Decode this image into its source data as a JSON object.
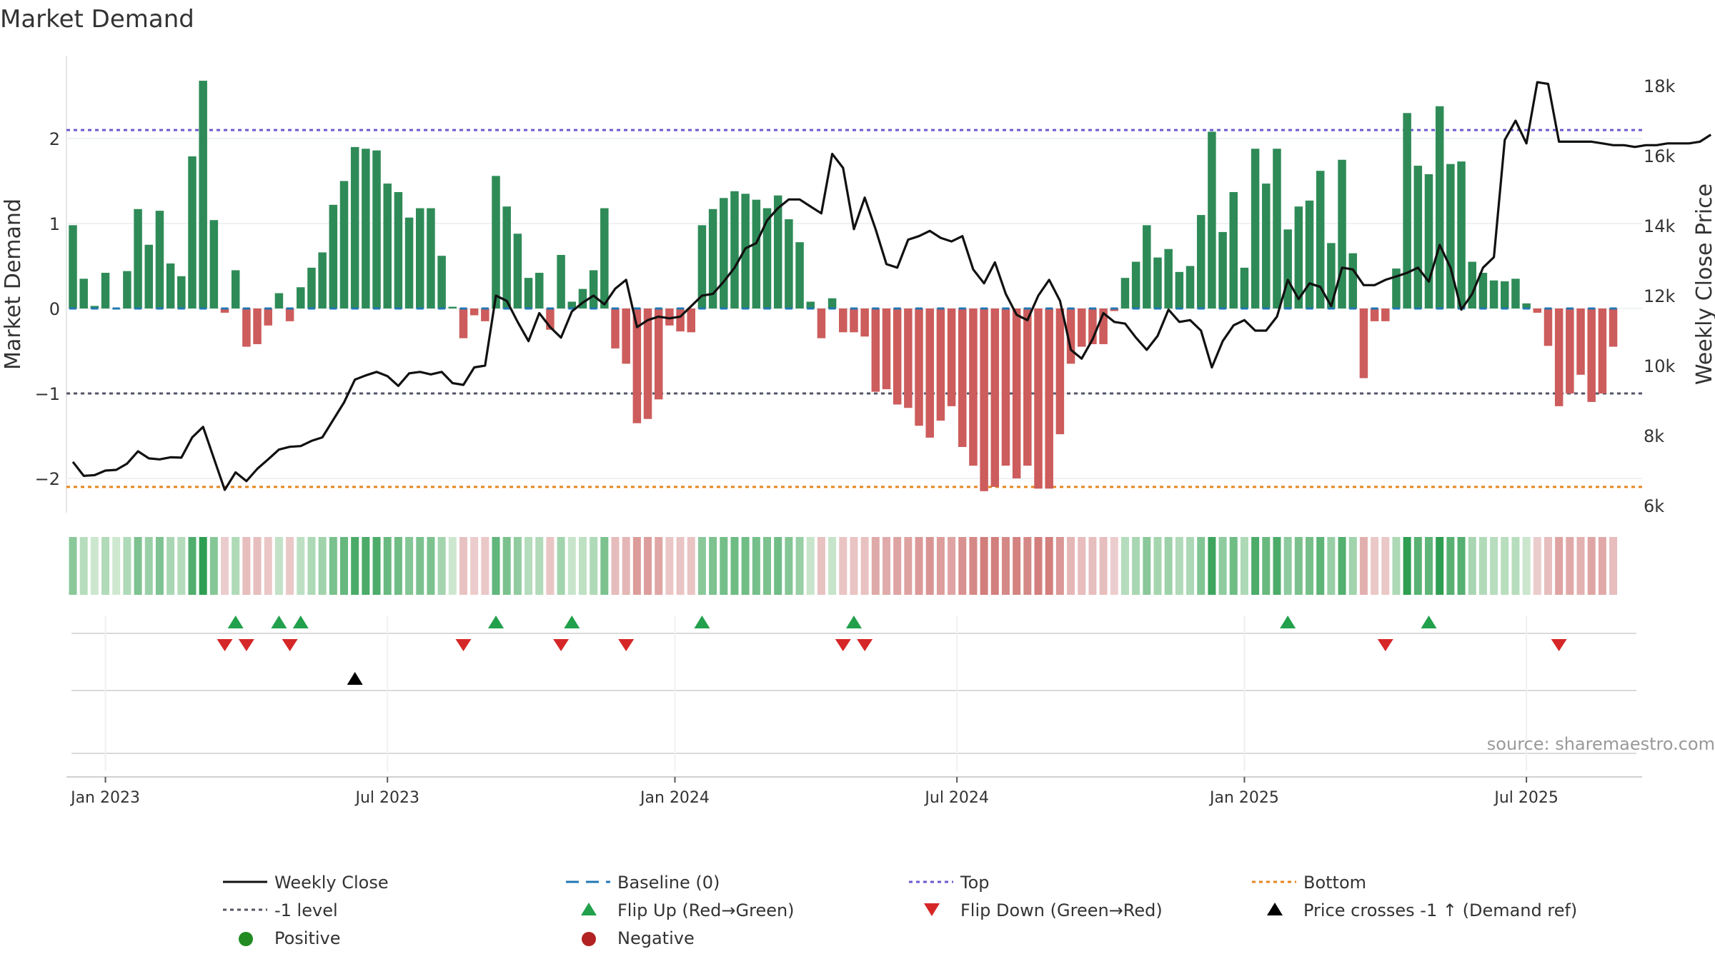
{
  "chart_data": {
    "type": "bar",
    "title": "Market Demand",
    "ylabel_left": "Market Demand",
    "ylabel_right": "Weekly Close Price",
    "ylim_left": [
      -2.4,
      2.9
    ],
    "ylim_right": [
      6000,
      18600
    ],
    "yticks_left": [
      {
        "value": 2,
        "label": "2"
      },
      {
        "value": 1,
        "label": "1"
      },
      {
        "value": 0,
        "label": "0"
      },
      {
        "value": -1,
        "label": "−1"
      },
      {
        "value": -2,
        "label": "−2"
      }
    ],
    "yticks_right": [
      {
        "value": 18000,
        "label": "18k"
      },
      {
        "value": 16000,
        "label": "16k"
      },
      {
        "value": 14000,
        "label": "14k"
      },
      {
        "value": 12000,
        "label": "12k"
      },
      {
        "value": 10000,
        "label": "10k"
      },
      {
        "value": 8000,
        "label": "8k"
      },
      {
        "value": 6000,
        "label": "6k"
      }
    ],
    "xticks": [
      {
        "week": 3,
        "label": "Jan 2023"
      },
      {
        "week": 29,
        "label": "Jul 2023"
      },
      {
        "week": 55.5,
        "label": "Jan 2024"
      },
      {
        "week": 81.5,
        "label": "Jul 2024"
      },
      {
        "week": 108,
        "label": "Jan 2025"
      },
      {
        "week": 134,
        "label": "Jul 2025"
      }
    ],
    "reference_lines": {
      "top": 2.1,
      "bottom": -2.1,
      "minus_one": -1,
      "baseline": 0
    },
    "demand": [
      0.98,
      0.35,
      0.03,
      0.42,
      0.0,
      0.44,
      1.17,
      0.75,
      1.15,
      0.53,
      0.38,
      1.79,
      2.68,
      1.04,
      -0.05,
      0.45,
      -0.45,
      -0.42,
      -0.2,
      0.18,
      -0.15,
      0.25,
      0.48,
      0.66,
      1.22,
      1.5,
      1.9,
      1.88,
      1.86,
      1.47,
      1.37,
      1.07,
      1.18,
      1.18,
      0.62,
      0.02,
      -0.35,
      -0.08,
      -0.15,
      1.56,
      1.2,
      0.88,
      0.36,
      0.42,
      -0.25,
      0.63,
      0.08,
      0.23,
      0.45,
      1.18,
      -0.47,
      -0.65,
      -1.35,
      -1.3,
      -1.07,
      -0.2,
      -0.27,
      -0.28,
      0.98,
      1.17,
      1.3,
      1.38,
      1.35,
      1.28,
      1.18,
      1.33,
      1.05,
      0.78,
      0.08,
      -0.35,
      0.12,
      -0.28,
      -0.28,
      -0.33,
      -0.98,
      -0.95,
      -1.13,
      -1.17,
      -1.38,
      -1.52,
      -1.32,
      -1.15,
      -1.63,
      -1.85,
      -2.15,
      -2.1,
      -1.85,
      -2.0,
      -1.85,
      -2.12,
      -2.12,
      -1.48,
      -0.65,
      -0.45,
      -0.42,
      -0.42,
      -0.03,
      0.36,
      0.55,
      0.98,
      0.6,
      0.7,
      0.43,
      0.5,
      1.1,
      2.08,
      0.9,
      1.37,
      0.48,
      1.88,
      1.47,
      1.88,
      0.93,
      1.2,
      1.27,
      1.62,
      0.77,
      1.75,
      0.65,
      -0.82,
      -0.15,
      -0.15,
      0.47,
      2.3,
      1.68,
      1.58,
      2.38,
      1.7,
      1.73,
      0.55,
      0.42,
      0.33,
      0.32,
      0.35,
      0.06,
      -0.05,
      -0.44,
      -1.15,
      -1.0,
      -0.78,
      -1.1,
      -1.0,
      -0.45
    ],
    "weekly_close": [
      7250,
      6850,
      6870,
      7000,
      7020,
      7200,
      7550,
      7350,
      7320,
      7380,
      7370,
      7950,
      8250,
      7350,
      6450,
      6950,
      6700,
      7050,
      7320,
      7600,
      7680,
      7700,
      7850,
      7950,
      8450,
      8950,
      9600,
      9720,
      9820,
      9700,
      9420,
      9780,
      9820,
      9750,
      9820,
      9500,
      9450,
      9950,
      10000,
      12000,
      11850,
      11250,
      10700,
      11500,
      11100,
      10800,
      11550,
      11800,
      12000,
      11750,
      12200,
      12450,
      11100,
      11300,
      11400,
      11350,
      11400,
      11700,
      12000,
      12050,
      12400,
      12800,
      13350,
      13500,
      14150,
      14500,
      14750,
      14750,
      14550,
      14350,
      16050,
      15650,
      13900,
      14800,
      13900,
      12900,
      12800,
      13600,
      13700,
      13850,
      13650,
      13550,
      13700,
      12750,
      12350,
      12950,
      12050,
      11450,
      11300,
      12000,
      12450,
      11850,
      10450,
      10200,
      10750,
      11500,
      11250,
      11200,
      10800,
      10450,
      10850,
      11600,
      11250,
      11300,
      11000,
      9950,
      10700,
      11150,
      11300,
      11000,
      11000,
      11400,
      12450,
      11900,
      12350,
      12250,
      11700,
      12800,
      12750,
      12300,
      12300,
      12450,
      12550,
      12650,
      12800,
      12400,
      13450,
      12800,
      11600,
      12050,
      12800,
      13100,
      16450,
      17000,
      16350,
      18100,
      18050,
      16400,
      16400,
      16400,
      16400,
      16350,
      16300,
      16300,
      16250,
      16300,
      16300,
      16350,
      16350,
      16350,
      16400,
      16600
    ],
    "flip_up_weeks": [
      15,
      19,
      21,
      39,
      46,
      58,
      72,
      112,
      125
    ],
    "flip_down_weeks": [
      14,
      16,
      20,
      36,
      45,
      51,
      71,
      73,
      121,
      137
    ],
    "price_cross_weeks": [
      26
    ],
    "colors": {
      "positive_bar": "#2e8b57",
      "negative_bar": "#cd5c5c",
      "weekly_close": "#111111",
      "baseline": "#1f77b4",
      "top": "#6a5acd",
      "bottom": "#e6851e",
      "minus_one": "#555566",
      "flip_up": "#22a04b",
      "flip_down": "#d62728",
      "price_cross": "#000000",
      "positive_dot": "#228b22",
      "negative_dot": "#b22222"
    },
    "legend": [
      {
        "key": "weekly_close",
        "label": "Weekly Close"
      },
      {
        "key": "baseline",
        "label": "Baseline (0)"
      },
      {
        "key": "top",
        "label": "Top"
      },
      {
        "key": "bottom",
        "label": "Bottom"
      },
      {
        "key": "minus_one",
        "label": "-1 level"
      },
      {
        "key": "flip_up",
        "label": "Flip Up (Red→Green)"
      },
      {
        "key": "flip_down",
        "label": "Flip Down (Green→Red)"
      },
      {
        "key": "price_cross",
        "label": "Price crosses -1 ↑ (Demand ref)"
      },
      {
        "key": "positive",
        "label": "Positive"
      },
      {
        "key": "negative",
        "label": "Negative"
      }
    ],
    "source_text": "source: sharemaestro.com"
  }
}
